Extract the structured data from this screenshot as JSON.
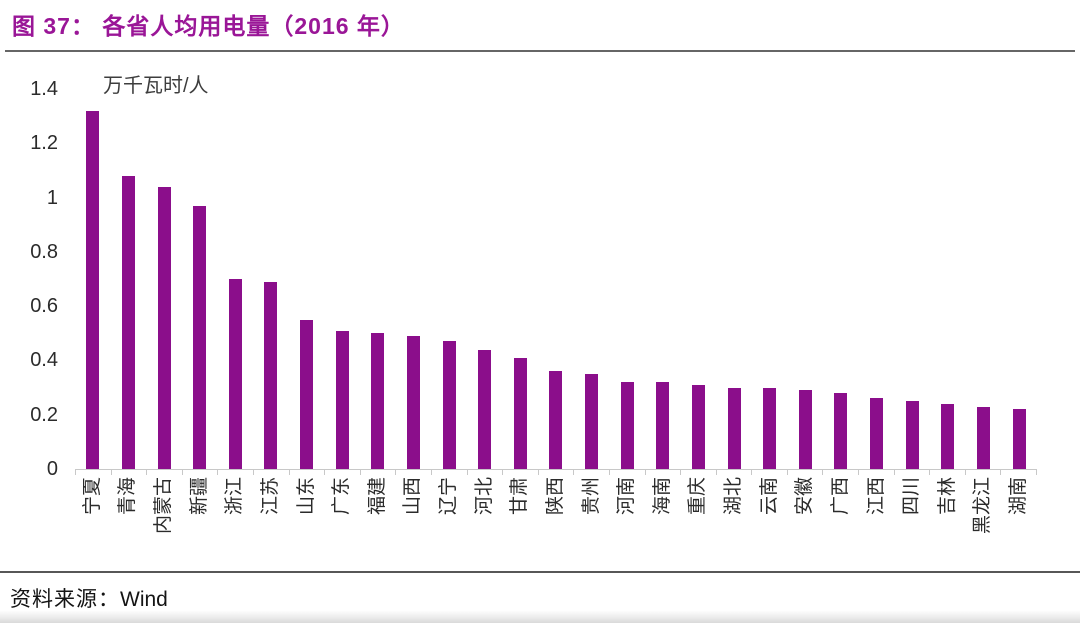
{
  "header": {
    "title": "图 37： 各省人均用电量（2016 年）"
  },
  "footer": {
    "source_label": "资料来源：",
    "source_value": "Wind"
  },
  "colors": {
    "title": "#9a1697",
    "bar": "#8b0e8b",
    "axis_text": "#2b2b2b",
    "axis_line": "#c8c8c8",
    "title_rule": "#666666",
    "footer_rule": "#575757"
  },
  "chart_data": {
    "type": "bar",
    "title": "各省人均用电量（2016 年）",
    "unit_label": "万千瓦时/人",
    "xlabel": "",
    "ylabel": "万千瓦时/人",
    "ylim": [
      0,
      1.4
    ],
    "yticks": [
      0,
      0.2,
      0.4,
      0.6,
      0.8,
      1,
      1.2,
      1.4
    ],
    "ytick_labels": [
      "0",
      "0.2",
      "0.4",
      "0.6",
      "0.8",
      "1",
      "1.2",
      "1.4"
    ],
    "grid": false,
    "legend": "none",
    "categories": [
      "宁夏",
      "青海",
      "内蒙古",
      "新疆",
      "浙江",
      "江苏",
      "山东",
      "广东",
      "福建",
      "山西",
      "辽宁",
      "河北",
      "甘肃",
      "陕西",
      "贵州",
      "河南",
      "海南",
      "重庆",
      "湖北",
      "云南",
      "安徽",
      "广西",
      "江西",
      "四川",
      "吉林",
      "黑龙江",
      "湖南"
    ],
    "values": [
      1.32,
      1.08,
      1.04,
      0.97,
      0.7,
      0.69,
      0.55,
      0.51,
      0.5,
      0.49,
      0.47,
      0.44,
      0.41,
      0.36,
      0.35,
      0.32,
      0.32,
      0.31,
      0.3,
      0.3,
      0.29,
      0.28,
      0.26,
      0.25,
      0.24,
      0.23,
      0.22
    ]
  }
}
